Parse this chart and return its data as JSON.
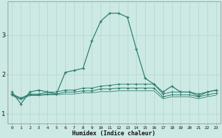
{
  "xlabel": "Humidex (Indice chaleur)",
  "x_ticks": [
    0,
    1,
    2,
    3,
    4,
    5,
    6,
    7,
    8,
    9,
    10,
    11,
    12,
    13,
    14,
    15,
    16,
    17,
    18,
    19,
    20,
    21,
    22,
    23
  ],
  "ylim": [
    0.75,
    3.85
  ],
  "xlim": [
    -0.5,
    23.5
  ],
  "yticks": [
    1,
    2,
    3
  ],
  "bg_color": "#cce9e4",
  "grid_color": "#b8d8d3",
  "line_color": "#2e7d6e",
  "line1": [
    1.55,
    1.25,
    1.55,
    1.6,
    1.55,
    1.5,
    2.05,
    2.1,
    2.15,
    2.85,
    3.35,
    3.55,
    3.55,
    3.45,
    2.65,
    1.9,
    1.75,
    1.55,
    1.7,
    1.55,
    1.55,
    1.45,
    1.55,
    1.6
  ],
  "line2": [
    1.5,
    1.4,
    1.5,
    1.5,
    1.55,
    1.55,
    1.6,
    1.6,
    1.65,
    1.65,
    1.7,
    1.72,
    1.75,
    1.75,
    1.75,
    1.75,
    1.75,
    1.5,
    1.55,
    1.55,
    1.55,
    1.5,
    1.55,
    1.6
  ],
  "line3": [
    1.48,
    1.38,
    1.48,
    1.48,
    1.5,
    1.5,
    1.55,
    1.55,
    1.58,
    1.58,
    1.63,
    1.63,
    1.65,
    1.65,
    1.65,
    1.65,
    1.65,
    1.43,
    1.48,
    1.48,
    1.48,
    1.43,
    1.48,
    1.52
  ],
  "line4": [
    1.46,
    1.36,
    1.46,
    1.46,
    1.48,
    1.48,
    1.5,
    1.5,
    1.53,
    1.53,
    1.56,
    1.56,
    1.58,
    1.58,
    1.58,
    1.58,
    1.58,
    1.38,
    1.43,
    1.43,
    1.43,
    1.38,
    1.43,
    1.47
  ]
}
